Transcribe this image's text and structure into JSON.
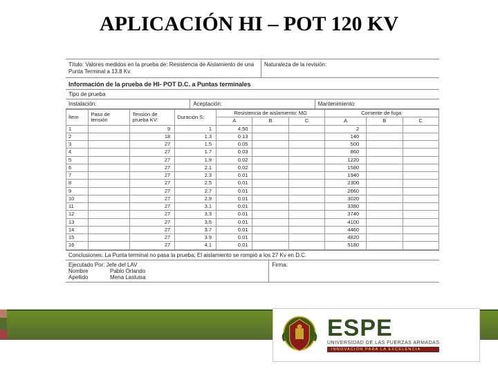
{
  "title": "APLICACIÓN HI – POT 120 KV",
  "header": {
    "titulo": "Título: Valores medidos en la prueba de: Resistencia de Aislamiento de una Punta Terminal a 13.8 Kv.",
    "naturaleza": "Naturaleza de la revisión:"
  },
  "section_title": "Información de la prueba de HI- POT D.C. a Puntas terminales",
  "subheaders": {
    "tipo": "Tipo de prueba",
    "instalacion": "Instalación:",
    "aceptacion": "Aceptación:",
    "mantenimiento": "Mantenimiento:"
  },
  "columns": {
    "item": "Ítem",
    "paso": "Paso de tensión",
    "tension": "Tensión de prueba KV:",
    "duracion": "Duración S:",
    "resistencia": "Resistencia de aislamiento: MΩ",
    "corriente": "Corriente de fuga:",
    "a": "A",
    "b": "B",
    "c": "C"
  },
  "rows": [
    {
      "i": "1",
      "paso": "",
      "kv": "9",
      "dur": "1",
      "ra": "4.50",
      "rb": "",
      "rc": "",
      "ca": "2",
      "cb": "",
      "cc": ""
    },
    {
      "i": "2",
      "paso": "",
      "kv": "18",
      "dur": "1.3",
      "ra": "0.13",
      "rb": "",
      "rc": "",
      "ca": "140",
      "cb": "",
      "cc": ""
    },
    {
      "i": "3",
      "paso": "",
      "kv": "27",
      "dur": "1.5",
      "ra": "0.05",
      "rb": "",
      "rc": "",
      "ca": "500",
      "cb": "",
      "cc": ""
    },
    {
      "i": "4",
      "paso": "",
      "kv": "27",
      "dur": "1.7",
      "ra": "0.03",
      "rb": "",
      "rc": "",
      "ca": "860",
      "cb": "",
      "cc": ""
    },
    {
      "i": "5",
      "paso": "",
      "kv": "27",
      "dur": "1.9",
      "ra": "0.02",
      "rb": "",
      "rc": "",
      "ca": "1220",
      "cb": "",
      "cc": ""
    },
    {
      "i": "6",
      "paso": "",
      "kv": "27",
      "dur": "2.1",
      "ra": "0.02",
      "rb": "",
      "rc": "",
      "ca": "1580",
      "cb": "",
      "cc": ""
    },
    {
      "i": "7",
      "paso": "",
      "kv": "27",
      "dur": "2.3",
      "ra": "0.01",
      "rb": "",
      "rc": "",
      "ca": "1940",
      "cb": "",
      "cc": ""
    },
    {
      "i": "8",
      "paso": "",
      "kv": "27",
      "dur": "2.5",
      "ra": "0.01",
      "rb": "",
      "rc": "",
      "ca": "2300",
      "cb": "",
      "cc": ""
    },
    {
      "i": "9",
      "paso": "",
      "kv": "27",
      "dur": "2.7",
      "ra": "0.01",
      "rb": "",
      "rc": "",
      "ca": "2660",
      "cb": "",
      "cc": ""
    },
    {
      "i": "10",
      "paso": "",
      "kv": "27",
      "dur": "2.9",
      "ra": "0.01",
      "rb": "",
      "rc": "",
      "ca": "3020",
      "cb": "",
      "cc": ""
    },
    {
      "i": "11",
      "paso": "",
      "kv": "27",
      "dur": "3.1",
      "ra": "0.01",
      "rb": "",
      "rc": "",
      "ca": "3380",
      "cb": "",
      "cc": ""
    },
    {
      "i": "12",
      "paso": "",
      "kv": "27",
      "dur": "3.3",
      "ra": "0.01",
      "rb": "",
      "rc": "",
      "ca": "3740",
      "cb": "",
      "cc": ""
    },
    {
      "i": "13",
      "paso": "",
      "kv": "27",
      "dur": "3.5",
      "ra": "0.01",
      "rb": "",
      "rc": "",
      "ca": "4100",
      "cb": "",
      "cc": ""
    },
    {
      "i": "14",
      "paso": "",
      "kv": "27",
      "dur": "3.7",
      "ra": "0.01",
      "rb": "",
      "rc": "",
      "ca": "4460",
      "cb": "",
      "cc": ""
    },
    {
      "i": "15",
      "paso": "",
      "kv": "27",
      "dur": "3.9",
      "ra": "0.01",
      "rb": "",
      "rc": "",
      "ca": "4820",
      "cb": "",
      "cc": ""
    },
    {
      "i": "16",
      "paso": "",
      "kv": "27",
      "dur": "4.1",
      "ra": "0.01",
      "rb": "",
      "rc": "",
      "ca": "5180",
      "cb": "",
      "cc": ""
    }
  ],
  "conclusion": "Conclusiones: La Punta terminal no pasa la prueba; El aislamiento se rompió a los 27 Kv en D.C.",
  "sign": {
    "ejecutado": "Ejecutado Por: Jefe del LAV",
    "nombre_lbl": "Nombre",
    "apellido_lbl": "Apellido",
    "nombre_val": "Pablo Orlando",
    "apellido_val": "Mena Lasluisa",
    "firma": "Firma:"
  },
  "logo": {
    "name": "ESPE",
    "sub1": "UNIVERSIDAD DE LAS FUERZAS ARMADAS",
    "sub2": "INNOVACIÓN PARA LA EXCELENCIA"
  },
  "colors": {
    "footer_green_top": "#6b8e23",
    "footer_green_bottom": "#556b2f",
    "band_tan": "#b08060",
    "band_red": "#a24242",
    "espe_bar": "#7a1e1e",
    "espe_text": "#2e4e1f"
  }
}
